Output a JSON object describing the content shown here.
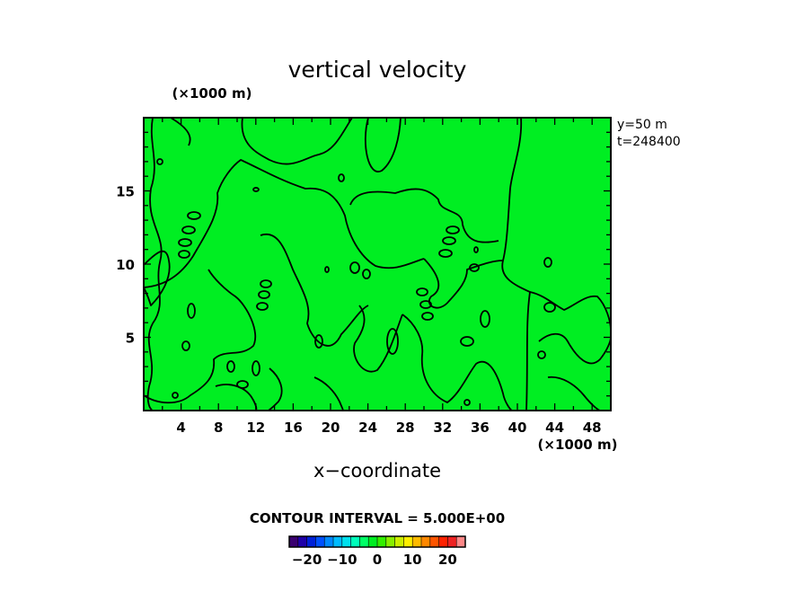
{
  "chart_data": {
    "type": "heatmap",
    "title": "vertical velocity",
    "xlabel": "x−coordinate",
    "x_unit": "(×1000 m)",
    "y_unit": "(×1000 m)",
    "xlim": [
      0,
      50
    ],
    "ylim": [
      0,
      20
    ],
    "x_ticks": [
      "4",
      "8",
      "12",
      "16",
      "20",
      "24",
      "28",
      "32",
      "36",
      "40",
      "44",
      "48"
    ],
    "y_ticks": [
      "5",
      "10",
      "15"
    ],
    "annotations": [
      "y=50  m",
      "t=248400"
    ],
    "contour_interval": "CONTOUR INTERVAL = 5.000E+00",
    "field_color": "#00ee22",
    "contour_color": "#000000",
    "colorbar": {
      "ticks": [
        "−20",
        "−10",
        "0",
        "10",
        "20"
      ],
      "tick_values": [
        -20,
        -10,
        0,
        10,
        20
      ],
      "range": [
        -25,
        25
      ],
      "colors": [
        "#3a0070",
        "#1f00a8",
        "#0020d8",
        "#0050ff",
        "#0088ff",
        "#00bbff",
        "#00e0ee",
        "#00ffbb",
        "#00ff66",
        "#00ee22",
        "#33ee00",
        "#88ee00",
        "#ccee00",
        "#ffee00",
        "#ffbb00",
        "#ff8800",
        "#ff5500",
        "#ff2200",
        "#ee2222",
        "#ff8888"
      ]
    }
  }
}
